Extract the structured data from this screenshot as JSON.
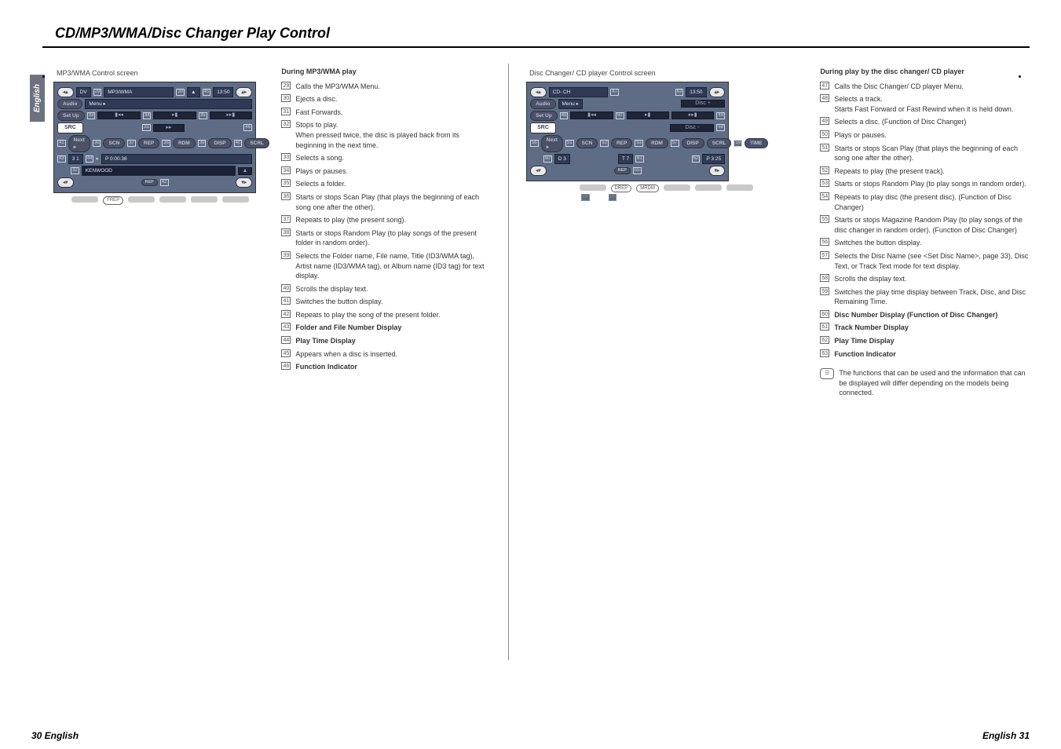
{
  "title": "CD/MP3/WMA/Disc Changer Play Control",
  "locale_tab": "English",
  "footer_left": "30 English",
  "footer_right": "English 31",
  "mp3_caption": "MP3/WMA Control screen",
  "cd_caption": "Disc Changer/ CD player Control screen",
  "mp3_screen": {
    "top_mode": "DV",
    "top_label": "MP3/WMA",
    "menu": "Menu ▸",
    "clock": "13:50",
    "side": [
      "Audio",
      "Set Up",
      "SRC"
    ],
    "track_nums": [
      "32",
      "33",
      "34",
      "35"
    ],
    "bar_text": "▸▸",
    "btn_row_left": "Next ▸",
    "btns": [
      "SCN",
      "REP",
      "RDM",
      "DISP",
      "SCRL"
    ],
    "folder": "3       1",
    "time": "P  0:00:38",
    "artist": "KENWOOD",
    "bottom_pill": "FREP"
  },
  "cd_screen": {
    "top_label": "CD- CH",
    "menu": "Menu ▸",
    "disc_plus": "Disc +",
    "disc_minus": "Disc -",
    "clock": "13:50",
    "side": [
      "Audio",
      "Set Up",
      "SRC"
    ],
    "btn_row_left": "Next ▸",
    "btns": [
      "SCN",
      "REP",
      "RDM",
      "DISP",
      "SCRL",
      "TIME"
    ],
    "d_label": "D 3",
    "t_label": "T 7",
    "p_label": "P 3:25",
    "bottom_pills": [
      "DREP",
      "MRDM"
    ]
  },
  "mp3_heading": "During MP3/WMA play",
  "mp3_list": [
    {
      "n": "29",
      "t": "Calls the MP3/WMA Menu."
    },
    {
      "n": "30",
      "t": "Ejects a disc."
    },
    {
      "n": "31",
      "t": "Fast Forwards."
    },
    {
      "n": "32",
      "t": "Stops to play.\nWhen pressed twice, the disc is played back from its beginning in the next time."
    },
    {
      "n": "33",
      "t": "Selects a song."
    },
    {
      "n": "34",
      "t": "Plays or pauses."
    },
    {
      "n": "35",
      "t": "Selects a folder."
    },
    {
      "n": "36",
      "t": "Starts or stops Scan Play (that plays the beginning of each song one after the other)."
    },
    {
      "n": "37",
      "t": "Repeats to play (the present song)."
    },
    {
      "n": "38",
      "t": "Starts or stops Random Play (to play songs of the present folder in random order)."
    },
    {
      "n": "39",
      "t": "Selects the Folder name, File name, Title (ID3/WMA tag), Artist name (ID3/WMA tag), or Album name (ID3 tag) for text display."
    },
    {
      "n": "40",
      "t": "Scrolls the display text."
    },
    {
      "n": "41",
      "t": "Switches the button display."
    },
    {
      "n": "42",
      "t": "Repeats to play the song of the present folder."
    },
    {
      "n": "43",
      "t": "Folder and File Number Display",
      "b": true
    },
    {
      "n": "44",
      "t": "Play Time Display",
      "b": true
    },
    {
      "n": "45",
      "t": "Appears when a disc is inserted."
    },
    {
      "n": "46",
      "t": "Function Indicator",
      "b": true
    }
  ],
  "cd_heading": "During play by the disc changer/ CD player",
  "cd_list": [
    {
      "n": "47",
      "t": "Calls the Disc Changer/ CD player Menu."
    },
    {
      "n": "48",
      "t": "Selects a track.\nStarts Fast Forward or Fast Rewind when it is held down."
    },
    {
      "n": "49",
      "t": "Selects a disc. (Function of Disc Changer)"
    },
    {
      "n": "50",
      "t": "Plays or pauses."
    },
    {
      "n": "51",
      "t": "Starts or stops Scan Play (that plays the beginning of each song one after the other)."
    },
    {
      "n": "52",
      "t": "Repeats to play (the present track)."
    },
    {
      "n": "53",
      "t": "Starts or stops Random Play (to play songs in random order)."
    },
    {
      "n": "54",
      "t": "Repeats to play disc (the present disc). (Function of Disc Changer)"
    },
    {
      "n": "55",
      "t": "Starts or stops Magazine Random Play (to play songs of the disc changer in random order). (Function of Disc Changer)"
    },
    {
      "n": "56",
      "t": "Switches the button display."
    },
    {
      "n": "57",
      "t": "Selects the Disc Name (see <Set Disc Name>, page 33), Disc Text, or Track Text mode for text display."
    },
    {
      "n": "58",
      "t": "Scrolls the display text."
    },
    {
      "n": "59",
      "t": "Switches the play time display between Track, Disc, and Disc Remaining Time."
    },
    {
      "n": "60",
      "t": "Disc Number Display (Function of Disc Changer)",
      "b": true
    },
    {
      "n": "61",
      "t": "Track Number Display",
      "b": true
    },
    {
      "n": "62",
      "t": "Play Time Display",
      "b": true
    },
    {
      "n": "63",
      "t": "Function Indicator",
      "b": true
    }
  ],
  "note": "The functions that can be used and the information that can be displayed will differ depending on the models being connected."
}
